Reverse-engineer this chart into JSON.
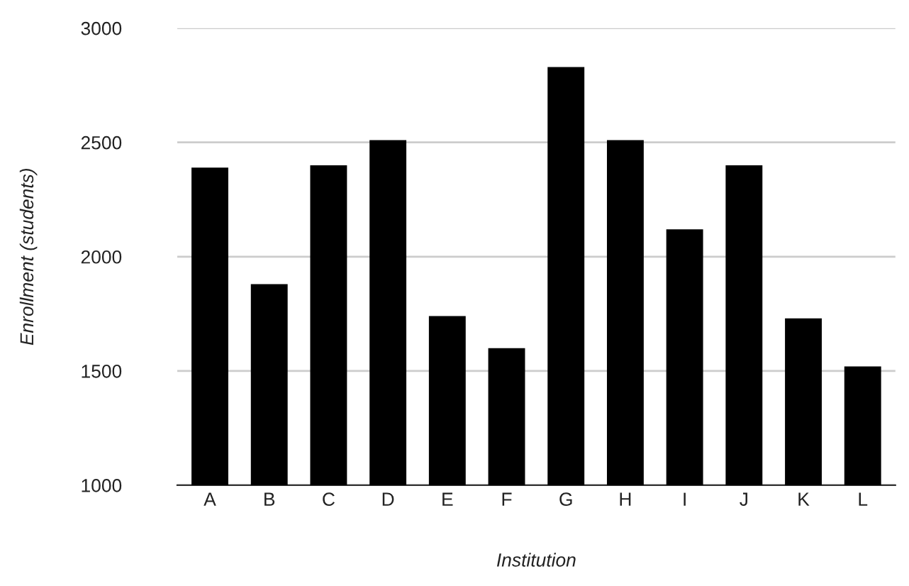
{
  "chart_data": {
    "type": "bar",
    "xlabel": "Institution",
    "ylabel": "Enrollment (students)",
    "categories": [
      "A",
      "B",
      "C",
      "D",
      "E",
      "F",
      "G",
      "H",
      "I",
      "J",
      "K",
      "L"
    ],
    "values": [
      2390,
      1880,
      2400,
      2510,
      1740,
      1600,
      2830,
      2510,
      2120,
      2400,
      1730,
      1520
    ],
    "color": "#000000",
    "ylim": [
      1000,
      3000
    ],
    "yticks": [
      1000,
      1500,
      2000,
      2500,
      3000
    ],
    "grid": "y",
    "legend": false
  }
}
